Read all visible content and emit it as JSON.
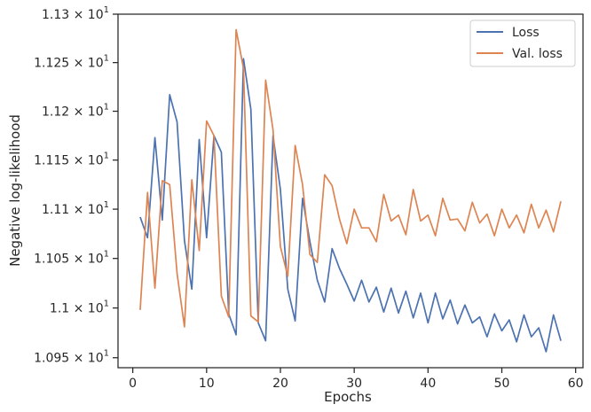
{
  "chart_data": {
    "type": "line",
    "title": "",
    "xlabel": "Epochs",
    "ylabel": "Negative log-likelihood",
    "xlim": [
      -2,
      61
    ],
    "ylim": [
      10.94,
      11.3
    ],
    "yscale": "log",
    "grid": false,
    "legend_position": "top-right",
    "x_ticks": [
      0,
      10,
      20,
      30,
      40,
      50,
      60
    ],
    "y_ticks": [
      {
        "value": 10.95,
        "mantissa": "1.095"
      },
      {
        "value": 11.0,
        "mantissa": "1.1"
      },
      {
        "value": 11.05,
        "mantissa": "1.105"
      },
      {
        "value": 11.1,
        "mantissa": "1.11"
      },
      {
        "value": 11.15,
        "mantissa": "1.115"
      },
      {
        "value": 11.2,
        "mantissa": "1.12"
      },
      {
        "value": 11.25,
        "mantissa": "1.125"
      },
      {
        "value": 11.3,
        "mantissa": "1.13"
      }
    ],
    "tick_multiplier": "× 10",
    "tick_exponent": "1",
    "x": [
      1,
      2,
      3,
      4,
      5,
      6,
      7,
      8,
      9,
      10,
      11,
      12,
      13,
      14,
      15,
      16,
      17,
      18,
      19,
      20,
      21,
      22,
      23,
      24,
      25,
      26,
      27,
      28,
      29,
      30,
      31,
      32,
      33,
      34,
      35,
      36,
      37,
      38,
      39,
      40,
      41,
      42,
      43,
      44,
      45,
      46,
      47,
      48,
      49,
      50,
      51,
      52,
      53,
      54,
      55,
      56,
      57,
      58
    ],
    "series": [
      {
        "name": "Loss",
        "color": "#4c72b0",
        "values": [
          11.092,
          11.071,
          11.173,
          11.089,
          11.217,
          11.189,
          11.068,
          11.019,
          11.171,
          11.071,
          11.175,
          11.158,
          10.994,
          10.973,
          11.254,
          11.202,
          10.985,
          10.967,
          11.175,
          11.12,
          11.019,
          10.987,
          11.111,
          11.067,
          11.028,
          11.006,
          11.06,
          11.04,
          11.024,
          11.007,
          11.028,
          11.006,
          11.021,
          10.996,
          11.02,
          10.995,
          11.017,
          10.99,
          11.015,
          10.985,
          11.015,
          10.989,
          11.008,
          10.984,
          11.003,
          10.985,
          10.991,
          10.971,
          10.994,
          10.977,
          10.988,
          10.966,
          10.993,
          10.971,
          10.98,
          10.956,
          10.993,
          10.967
        ]
      },
      {
        "name": "Val. loss",
        "color": "#dd8452",
        "values": [
          10.998,
          11.117,
          11.02,
          11.129,
          11.125,
          11.035,
          10.981,
          11.13,
          11.058,
          11.19,
          11.175,
          11.012,
          10.991,
          11.284,
          11.244,
          10.992,
          10.986,
          11.232,
          11.181,
          11.062,
          11.032,
          11.165,
          11.125,
          11.054,
          11.046,
          11.135,
          11.124,
          11.09,
          11.065,
          11.1,
          11.081,
          11.081,
          11.067,
          11.115,
          11.088,
          11.094,
          11.074,
          11.12,
          11.088,
          11.094,
          11.073,
          11.111,
          11.089,
          11.09,
          11.078,
          11.107,
          11.086,
          11.095,
          11.073,
          11.1,
          11.081,
          11.094,
          11.076,
          11.105,
          11.081,
          11.099,
          11.077,
          11.108
        ]
      }
    ]
  }
}
